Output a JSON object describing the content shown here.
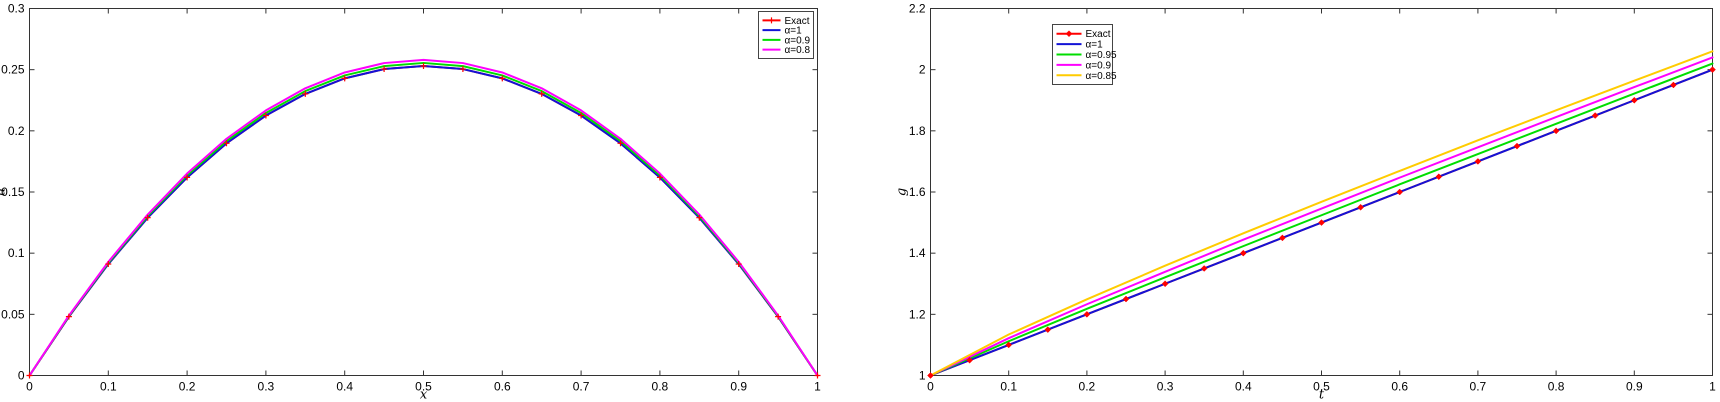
{
  "figure": {
    "background": "#FFFFFF",
    "frame_color": "#333333",
    "tick_color": "#333333",
    "text_color": "#000000"
  },
  "chart_data": [
    {
      "id": "left-plot",
      "type": "line",
      "title": "",
      "xlabel": "x",
      "ylabel": "u",
      "xlim": [
        0,
        1
      ],
      "ylim": [
        0,
        0.3
      ],
      "grid": false,
      "xtick_values": [
        0,
        0.1,
        0.2,
        0.3,
        0.4,
        0.5,
        0.6,
        0.7,
        0.8,
        0.9,
        1
      ],
      "xtick_labels": [
        "0",
        "0.1",
        "0.2",
        "0.3",
        "0.4",
        "0.5",
        "0.6",
        "0.7",
        "0.8",
        "0.9",
        "1"
      ],
      "ytick_values": [
        0,
        0.05,
        0.1,
        0.15,
        0.2,
        0.25,
        0.3
      ],
      "ytick_labels": [
        "0",
        "0.05",
        "0.1",
        "0.15",
        "0.2",
        "0.25",
        "0.3"
      ],
      "legend": {
        "position": "top-right-inside",
        "border_color": "#444444",
        "background": "#FFFFFF"
      },
      "series": [
        {
          "name": "Exact",
          "color": "#FF0000",
          "marker": "plus",
          "x": [
            0,
            0.05,
            0.1,
            0.15,
            0.2,
            0.25,
            0.3,
            0.35,
            0.4,
            0.45,
            0.5,
            0.55,
            0.6,
            0.65,
            0.7,
            0.75,
            0.8,
            0.85,
            0.9,
            0.95,
            1
          ],
          "y": [
            0,
            0.0481,
            0.0911,
            0.129,
            0.1619,
            0.1898,
            0.2125,
            0.2302,
            0.2429,
            0.2505,
            0.253,
            0.2505,
            0.2429,
            0.2302,
            0.2125,
            0.1898,
            0.1619,
            0.129,
            0.0911,
            0.0481,
            0
          ]
        },
        {
          "name": "α=1",
          "color": "#1313D6",
          "marker": null,
          "x": [
            0,
            0.05,
            0.1,
            0.15,
            0.2,
            0.25,
            0.3,
            0.35,
            0.4,
            0.45,
            0.5,
            0.55,
            0.6,
            0.65,
            0.7,
            0.75,
            0.8,
            0.85,
            0.9,
            0.95,
            1
          ],
          "y": [
            0,
            0.0481,
            0.0911,
            0.129,
            0.1619,
            0.1898,
            0.2125,
            0.2302,
            0.2429,
            0.2505,
            0.253,
            0.2505,
            0.2429,
            0.2302,
            0.2125,
            0.1898,
            0.1619,
            0.129,
            0.0911,
            0.0481,
            0
          ]
        },
        {
          "name": "α=0.9",
          "color": "#00DD00",
          "marker": null,
          "x": [
            0,
            0.05,
            0.1,
            0.15,
            0.2,
            0.25,
            0.3,
            0.35,
            0.4,
            0.45,
            0.5,
            0.55,
            0.6,
            0.65,
            0.7,
            0.75,
            0.8,
            0.85,
            0.9,
            0.95,
            1
          ],
          "y": [
            0,
            0.0485,
            0.092,
            0.1303,
            0.1635,
            0.1916,
            0.2146,
            0.2325,
            0.2453,
            0.2529,
            0.2555,
            0.2529,
            0.2453,
            0.2325,
            0.2146,
            0.1916,
            0.1635,
            0.1303,
            0.092,
            0.0485,
            0
          ]
        },
        {
          "name": "α=0.8",
          "color": "#FF00FF",
          "marker": null,
          "x": [
            0,
            0.05,
            0.1,
            0.15,
            0.2,
            0.25,
            0.3,
            0.35,
            0.4,
            0.45,
            0.5,
            0.55,
            0.6,
            0.65,
            0.7,
            0.75,
            0.8,
            0.85,
            0.9,
            0.95,
            1
          ],
          "y": [
            0,
            0.049,
            0.0929,
            0.1316,
            0.1651,
            0.1935,
            0.2167,
            0.2348,
            0.2477,
            0.2554,
            0.258,
            0.2554,
            0.2477,
            0.2348,
            0.2167,
            0.1935,
            0.1651,
            0.1316,
            0.0929,
            0.049,
            0
          ]
        }
      ]
    },
    {
      "id": "right-plot",
      "type": "line",
      "title": "",
      "xlabel": "t",
      "ylabel": "g",
      "xlim": [
        0,
        1
      ],
      "ylim": [
        1,
        2.2
      ],
      "grid": false,
      "xtick_values": [
        0,
        0.1,
        0.2,
        0.3,
        0.4,
        0.5,
        0.6,
        0.7,
        0.8,
        0.9,
        1
      ],
      "xtick_labels": [
        "0",
        "0.1",
        "0.2",
        "0.3",
        "0.4",
        "0.5",
        "0.6",
        "0.7",
        "0.8",
        "0.9",
        "1"
      ],
      "ytick_values": [
        1,
        1.2,
        1.4,
        1.6,
        1.8,
        2,
        2.2
      ],
      "ytick_labels": [
        "1",
        "1.2",
        "1.4",
        "1.6",
        "1.8",
        "2",
        "2.2"
      ],
      "legend": {
        "position": "top-center-left-inside",
        "border_color": "#444444",
        "background": "#FFFFFF"
      },
      "series": [
        {
          "name": "Exact",
          "color": "#FF0000",
          "marker": "diamond",
          "x": [
            0,
            0.05,
            0.1,
            0.15,
            0.2,
            0.25,
            0.3,
            0.35,
            0.4,
            0.45,
            0.5,
            0.55,
            0.6,
            0.65,
            0.7,
            0.75,
            0.8,
            0.85,
            0.9,
            0.95,
            1
          ],
          "y": [
            1,
            1.05,
            1.1,
            1.15,
            1.2,
            1.25,
            1.3,
            1.35,
            1.4,
            1.45,
            1.5,
            1.55,
            1.6,
            1.65,
            1.7,
            1.75,
            1.8,
            1.85,
            1.9,
            1.95,
            2
          ]
        },
        {
          "name": "α=1",
          "color": "#1313D6",
          "marker": null,
          "x": [
            0,
            0.1,
            0.2,
            0.3,
            0.4,
            0.5,
            0.6,
            0.7,
            0.8,
            0.9,
            1
          ],
          "y": [
            1,
            1.1,
            1.2,
            1.3,
            1.4,
            1.5,
            1.6,
            1.7,
            1.8,
            1.9,
            2
          ]
        },
        {
          "name": "α=0.95",
          "color": "#00DD00",
          "marker": null,
          "x": [
            0,
            0.1,
            0.2,
            0.3,
            0.4,
            0.5,
            0.6,
            0.7,
            0.8,
            0.9,
            1
          ],
          "y": [
            1,
            1.112,
            1.218,
            1.321,
            1.423,
            1.524,
            1.625,
            1.724,
            1.823,
            1.922,
            2.02
          ]
        },
        {
          "name": "α=0.9",
          "color": "#FF00FF",
          "marker": null,
          "x": [
            0,
            0.1,
            0.2,
            0.3,
            0.4,
            0.5,
            0.6,
            0.7,
            0.8,
            0.9,
            1
          ],
          "y": [
            1,
            1.122,
            1.233,
            1.339,
            1.444,
            1.546,
            1.647,
            1.746,
            1.845,
            1.943,
            2.04
          ]
        },
        {
          "name": "α=0.85",
          "color": "#FFCC00",
          "marker": null,
          "x": [
            0,
            0.1,
            0.2,
            0.3,
            0.4,
            0.5,
            0.6,
            0.7,
            0.8,
            0.9,
            1
          ],
          "y": [
            1,
            1.134,
            1.249,
            1.359,
            1.465,
            1.568,
            1.669,
            1.769,
            1.867,
            1.964,
            2.06
          ]
        }
      ]
    }
  ]
}
